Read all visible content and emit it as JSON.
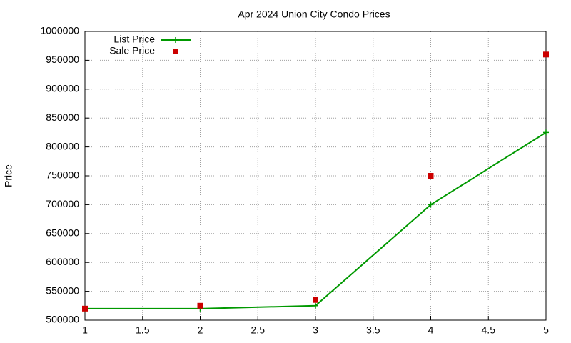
{
  "chart_data": {
    "type": "line",
    "title": "Apr 2024 Union City Condo Prices",
    "y_label": "Price",
    "x": [
      1,
      2,
      3,
      4,
      5
    ],
    "series": [
      {
        "name": "List Price",
        "color": "#009900",
        "line": true,
        "marker": "plus",
        "values": [
          520000,
          520000,
          525000,
          700000,
          825000
        ]
      },
      {
        "name": "Sale Price",
        "color": "#cc0000",
        "line": false,
        "marker": "square",
        "values": [
          520000,
          525000,
          535000,
          750000,
          960000
        ]
      }
    ],
    "xlim": [
      1,
      5
    ],
    "xticks": [
      1,
      1.5,
      2,
      2.5,
      3,
      3.5,
      4,
      4.5,
      5
    ],
    "ylim": [
      500000,
      1000000
    ],
    "yticks": [
      500000,
      550000,
      600000,
      650000,
      700000,
      750000,
      800000,
      850000,
      900000,
      950000,
      1000000
    ],
    "grid": true,
    "legend": "top-left"
  }
}
